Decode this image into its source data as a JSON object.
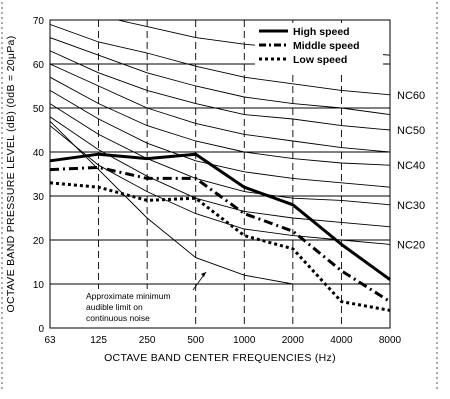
{
  "chart_data": {
    "type": "line",
    "x_categories": [
      "63",
      "125",
      "250",
      "500",
      "1000",
      "2000",
      "4000",
      "8000"
    ],
    "xlabel": "OCTAVE  BAND  CENTER  FREQUENCIES (Hz)",
    "ylabel": "OCTAVE  BAND  PRESSURE  LEVEL (dB) (0dB = 20μPa)",
    "ylim": [
      0,
      70
    ],
    "y_ticks": [
      0,
      10,
      20,
      30,
      40,
      50,
      60,
      70
    ],
    "legend_position": "top-right",
    "series": [
      {
        "name": "High speed",
        "style": "solid",
        "values": [
          38,
          39.5,
          38.5,
          39.5,
          32,
          28,
          19,
          11
        ]
      },
      {
        "name": "Middle speed",
        "style": "dash-dot",
        "values": [
          36,
          36.5,
          34,
          34,
          26,
          22,
          13,
          6
        ]
      },
      {
        "name": "Low speed",
        "style": "dotted",
        "values": [
          33,
          32,
          29,
          29.5,
          21,
          18,
          6,
          4
        ]
      }
    ],
    "nc_curves": [
      {
        "label": "",
        "values": [
          75,
          71,
          68.5,
          66,
          64.5,
          63.5,
          63,
          62
        ]
      },
      {
        "label": "NC60",
        "values": [
          69,
          65,
          62.5,
          59.5,
          57,
          55.5,
          54,
          53
        ]
      },
      {
        "label": "",
        "values": [
          66,
          62,
          58,
          55,
          52.5,
          51,
          50,
          48.5
        ]
      },
      {
        "label": "NC50",
        "values": [
          63,
          58,
          54,
          51,
          48.5,
          47.5,
          46,
          45
        ]
      },
      {
        "label": "",
        "values": [
          60,
          55,
          50,
          46.5,
          44,
          42.5,
          41,
          40
        ]
      },
      {
        "label": "NC40",
        "values": [
          57,
          51,
          46,
          42.5,
          40,
          38.5,
          37.5,
          37
        ]
      },
      {
        "label": "",
        "values": [
          54,
          47.5,
          42,
          38,
          35.5,
          34,
          33,
          32
        ]
      },
      {
        "label": "NC30",
        "values": [
          51,
          44,
          38.5,
          34,
          31,
          29.5,
          29,
          28
        ]
      },
      {
        "label": "",
        "values": [
          48,
          40.5,
          34.5,
          29.5,
          26.5,
          25,
          24,
          23
        ]
      },
      {
        "label": "NC20",
        "values": [
          46,
          37,
          31,
          26,
          22.5,
          21,
          20,
          19
        ]
      }
    ],
    "audible_limit": {
      "values": [
        47,
        36,
        25,
        16,
        12,
        10,
        null,
        null
      ]
    },
    "annotation": [
      "Approximate minimum",
      "audible limit on",
      "continuous noise"
    ]
  }
}
